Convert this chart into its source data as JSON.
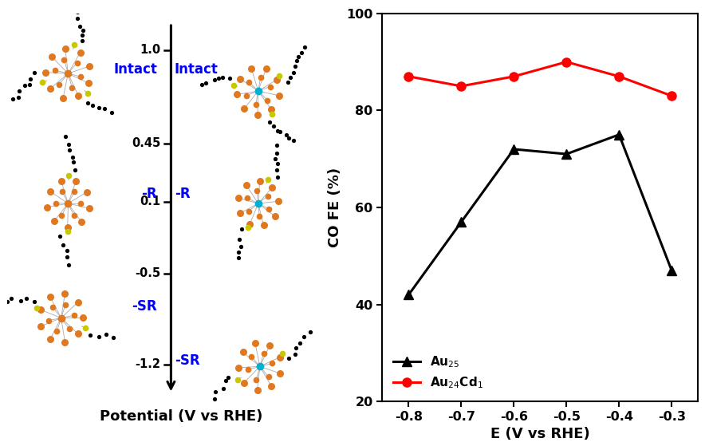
{
  "right_panel": {
    "Au25_x": [
      -0.8,
      -0.7,
      -0.6,
      -0.5,
      -0.4,
      -0.3
    ],
    "Au25_y": [
      42,
      57,
      72,
      71,
      75,
      47
    ],
    "Au24Cd1_x": [
      -0.8,
      -0.7,
      -0.6,
      -0.5,
      -0.4,
      -0.3
    ],
    "Au24Cd1_y": [
      87,
      85,
      87,
      90,
      87,
      83
    ],
    "Au25_color": "black",
    "Au24Cd1_color": "red",
    "xlabel": "E (V vs RHE)",
    "ylabel": "CO FE (%)",
    "ylim": [
      20,
      100
    ],
    "yticks": [
      20,
      40,
      60,
      80,
      100
    ],
    "xticks": [
      -0.8,
      -0.7,
      -0.6,
      -0.5,
      -0.4,
      -0.3
    ]
  }
}
